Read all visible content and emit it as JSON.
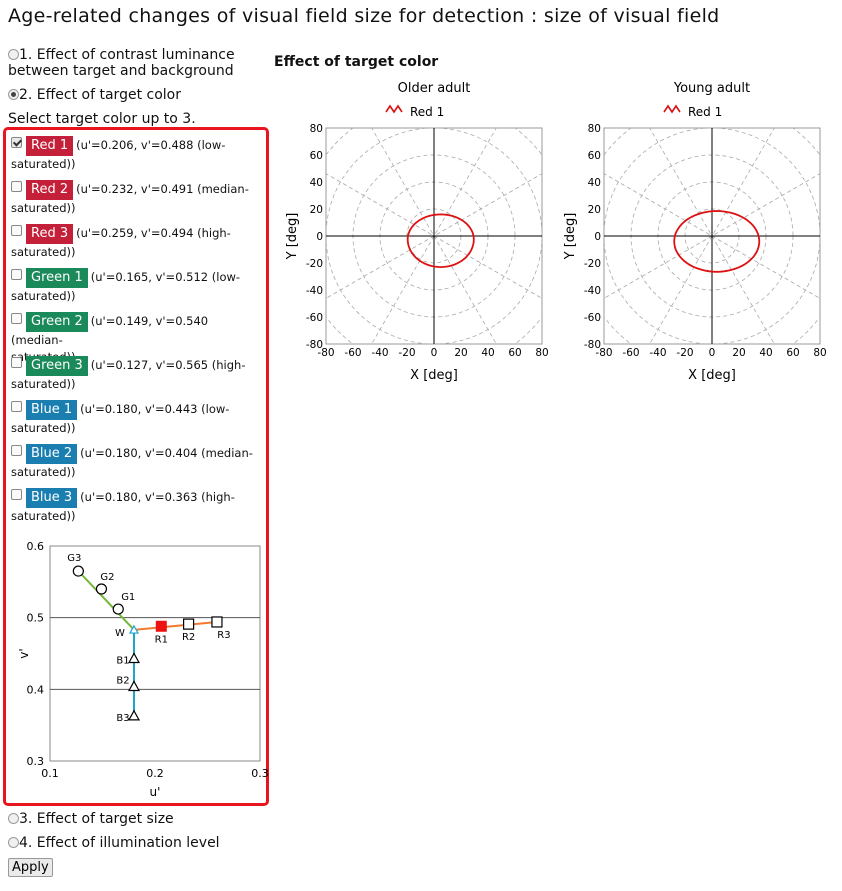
{
  "page": {
    "title": "Age-related changes of visual field size for detection : size of visual field"
  },
  "radios": [
    {
      "label": "1. Effect of contrast luminance between target and background",
      "line1": "1. Effect of contrast luminance",
      "line2": "between target and background",
      "checked": false
    },
    {
      "label": "2. Effect of target color",
      "checked": true
    },
    {
      "label": "3. Effect of target size",
      "checked": false
    },
    {
      "label": "4. Effect of illumination level",
      "checked": false
    }
  ],
  "prompt": "Select target color up to 3.",
  "colors": [
    {
      "name": "Red 1",
      "desc1": "(u'=0.206, v'=0.488 (low-",
      "desc2": "saturated))",
      "bg": "#c42039",
      "checked": true
    },
    {
      "name": "Red 2",
      "desc1": "(u'=0.232, v'=0.491 (median-",
      "desc2": "saturated))",
      "bg": "#c42039",
      "checked": false
    },
    {
      "name": "Red 3",
      "desc1": "(u'=0.259, v'=0.494 (high-",
      "desc2": "saturated))",
      "bg": "#c42039",
      "checked": false
    },
    {
      "name": "Green 1",
      "desc1": "(u'=0.165, v'=0.512 (low-",
      "desc2": "saturated))",
      "bg": "#1b8a5a",
      "checked": false
    },
    {
      "name": "Green 2",
      "desc1": "(u'=0.149, v'=0.540 (median-",
      "desc2": "saturated))",
      "bg": "#1b8a5a",
      "checked": false
    },
    {
      "name": "Green 3",
      "desc1": "(u'=0.127, v'=0.565 (high-",
      "desc2": "saturated))",
      "bg": "#1b8a5a",
      "checked": false
    },
    {
      "name": "Blue 1",
      "desc1": "(u'=0.180, v'=0.443 (low-",
      "desc2": "saturated))",
      "bg": "#1a7fb0",
      "checked": false
    },
    {
      "name": "Blue 2",
      "desc1": "(u'=0.180, v'=0.404 (median-",
      "desc2": "saturated))",
      "bg": "#1a7fb0",
      "checked": false
    },
    {
      "name": "Blue 3",
      "desc1": "(u'=0.180, v'=0.363 (high-",
      "desc2": "saturated))",
      "bg": "#1a7fb0",
      "checked": false
    }
  ],
  "apply_label": "Apply",
  "chart_data": [
    {
      "type": "scatter",
      "xlabel": "u'",
      "ylabel": "v'",
      "xlim": [
        0.1,
        0.3
      ],
      "ylim": [
        0.3,
        0.6
      ],
      "xticks": [
        "0.1",
        "0.2",
        "0.3"
      ],
      "yticks": [
        "0.3",
        "0.4",
        "0.5",
        "0.6"
      ],
      "points": [
        {
          "label": "W",
          "u": 0.18,
          "v": 0.483,
          "marker": "triangle",
          "color": "#1ea5c8"
        },
        {
          "label": "R1",
          "u": 0.206,
          "v": 0.488,
          "marker": "square-filled",
          "color": "#ee1111"
        },
        {
          "label": "R2",
          "u": 0.232,
          "v": 0.491,
          "marker": "square",
          "color": "#000000"
        },
        {
          "label": "R3",
          "u": 0.259,
          "v": 0.494,
          "marker": "square",
          "color": "#000000"
        },
        {
          "label": "G1",
          "u": 0.165,
          "v": 0.512,
          "marker": "circle",
          "color": "#000000"
        },
        {
          "label": "G2",
          "u": 0.149,
          "v": 0.54,
          "marker": "circle",
          "color": "#000000"
        },
        {
          "label": "G3",
          "u": 0.127,
          "v": 0.565,
          "marker": "circle",
          "color": "#000000"
        },
        {
          "label": "B1",
          "u": 0.18,
          "v": 0.443,
          "marker": "triangle",
          "color": "#000000"
        },
        {
          "label": "B2",
          "u": 0.18,
          "v": 0.404,
          "marker": "triangle",
          "color": "#000000"
        },
        {
          "label": "B3",
          "u": 0.18,
          "v": 0.363,
          "marker": "triangle",
          "color": "#000000"
        }
      ],
      "lines": [
        {
          "from": "W",
          "to": "R3",
          "color": "#f07a30"
        },
        {
          "from": "W",
          "to": "G3",
          "color": "#74b83a"
        },
        {
          "from": "W",
          "to": "B3",
          "color": "#1ea5c8"
        }
      ],
      "hlines": [
        0.4,
        0.5
      ]
    },
    {
      "type": "line",
      "group_title": "Effect of target color",
      "title": "Older adult",
      "xlabel": "X [deg]",
      "ylabel": "Y [deg]",
      "xlim": [
        -80,
        80
      ],
      "ylim": [
        -80,
        80
      ],
      "ticks": [
        "-80",
        "-60",
        "-40",
        "-20",
        "0",
        "20",
        "40",
        "60",
        "80"
      ],
      "legend": "Red 1",
      "series": [
        {
          "name": "Red 1",
          "color": "#dd1111",
          "cx": 5,
          "cy": -2.5,
          "rx": 24.5,
          "ry_top": 18.5,
          "ry_bottom": 20.5
        }
      ]
    },
    {
      "type": "line",
      "title": "Young adult",
      "xlabel": "X [deg]",
      "ylabel": "Y [deg]",
      "xlim": [
        -80,
        80
      ],
      "ylim": [
        -80,
        80
      ],
      "ticks": [
        "-80",
        "-60",
        "-40",
        "-20",
        "0",
        "20",
        "40",
        "60",
        "80"
      ],
      "legend": "Red 1",
      "series": [
        {
          "name": "Red 1",
          "color": "#dd1111",
          "cx": 3.5,
          "cy": -4,
          "rx": 31.5,
          "ry_top": 22.5,
          "ry_bottom": 22.5
        }
      ]
    }
  ]
}
